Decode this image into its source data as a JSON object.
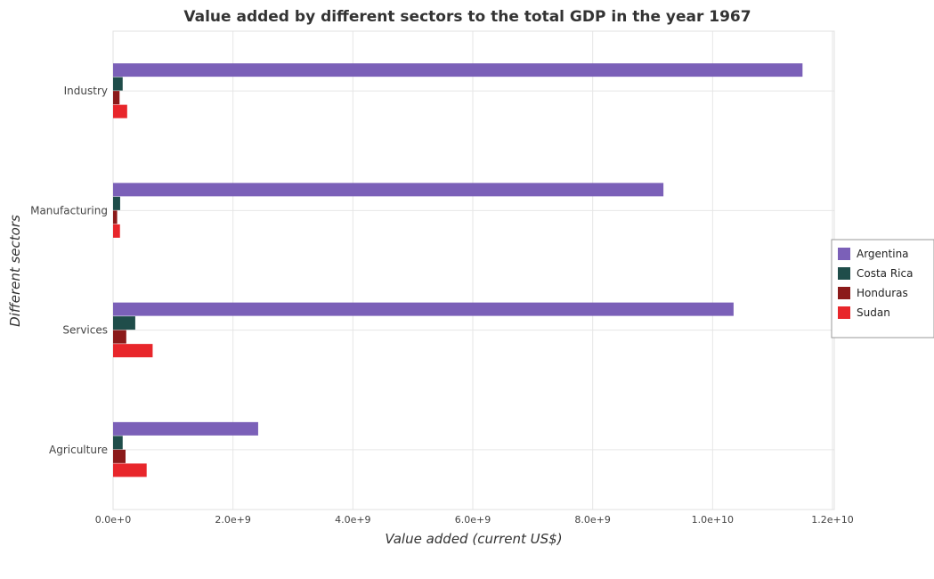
{
  "chart_data": {
    "type": "bar",
    "orientation": "horizontal",
    "title": "Value added by different sectors to the total GDP in the year 1967",
    "xlabel": "Value added (current US$)",
    "ylabel": "Different sectors",
    "categories": [
      "Industry",
      "Manufacturing",
      "Services",
      "Agriculture"
    ],
    "xlim": [
      0,
      12000000000
    ],
    "xticks": [
      0,
      2000000000,
      4000000000,
      6000000000,
      8000000000,
      10000000000,
      12000000000
    ],
    "xtick_labels": [
      "0.0e+0",
      "2.0e+9",
      "4.0e+9",
      "6.0e+9",
      "8.0e+9",
      "1.0e+10",
      "1.2e+10"
    ],
    "grid": true,
    "legend_position": "right",
    "series": [
      {
        "name": "Argentina",
        "color": "#7b60b8",
        "values": [
          11500000000,
          9180000000,
          10350000000,
          2420000000
        ]
      },
      {
        "name": "Costa Rica",
        "color": "#1f4d4a",
        "values": [
          160000000,
          118000000,
          370000000,
          160000000
        ]
      },
      {
        "name": "Honduras",
        "color": "#8b1a1a",
        "values": [
          108000000,
          68000000,
          220000000,
          208000000
        ]
      },
      {
        "name": "Sudan",
        "color": "#e8262b",
        "values": [
          235000000,
          115000000,
          660000000,
          560000000
        ]
      }
    ]
  }
}
